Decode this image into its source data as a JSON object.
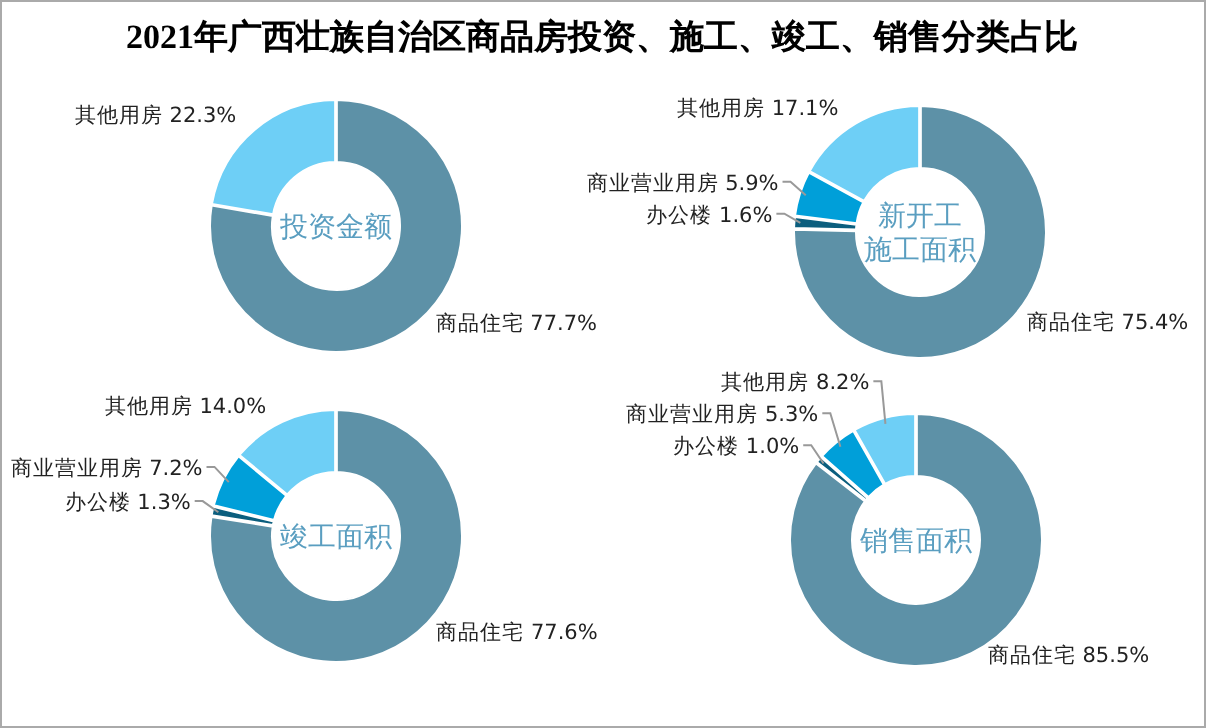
{
  "chart_data": [
    {
      "type": "donut",
      "title": "投资金额",
      "annotations": [
        "2021年广西壮族自治区商品房投资、施工、竣工、销售分类占比"
      ],
      "categories": [
        "商品住宅",
        "其他用房"
      ],
      "values": [
        77.7,
        22.3
      ],
      "colors": [
        "#5d91a7",
        "#6ecff6"
      ],
      "value_labels": [
        "77.7%",
        "22.3%"
      ]
    },
    {
      "type": "donut",
      "title": "新开工施工面积",
      "categories": [
        "商品住宅",
        "办公楼",
        "商业营业用房",
        "其他用房"
      ],
      "values": [
        75.4,
        1.6,
        5.9,
        17.1
      ],
      "colors": [
        "#5d91a7",
        "#0b5e7e",
        "#009fd9",
        "#6ecff6"
      ],
      "value_labels": [
        "75.4%",
        "1.6%",
        "5.9%",
        "17.1%"
      ]
    },
    {
      "type": "donut",
      "title": "竣工面积",
      "categories": [
        "商品住宅",
        "办公楼",
        "商业营业用房",
        "其他用房"
      ],
      "values": [
        77.6,
        1.3,
        7.2,
        14.0
      ],
      "colors": [
        "#5d91a7",
        "#0b5e7e",
        "#009fd9",
        "#6ecff6"
      ],
      "value_labels": [
        "77.6%",
        "1.3%",
        "7.2%",
        "14.0%"
      ]
    },
    {
      "type": "donut",
      "title": "销售面积",
      "categories": [
        "商品住宅",
        "办公楼",
        "商业营业用房",
        "其他用房"
      ],
      "values": [
        85.5,
        1.0,
        5.3,
        8.2
      ],
      "colors": [
        "#5d91a7",
        "#0b5e7e",
        "#009fd9",
        "#6ecff6"
      ],
      "value_labels": [
        "85.5%",
        "1.0%",
        "5.3%",
        "8.2%"
      ]
    }
  ]
}
